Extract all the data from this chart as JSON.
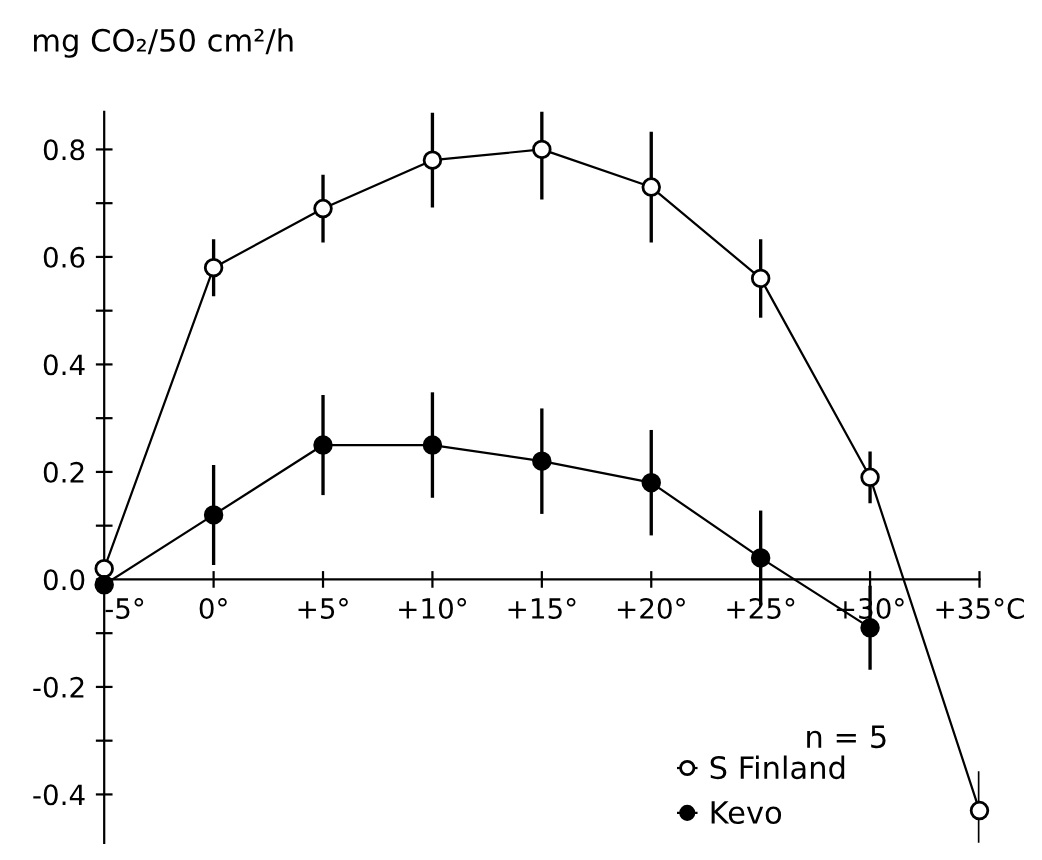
{
  "chart_data": {
    "type": "line",
    "ylabel": "mg CO₂/50 cm²/h",
    "x": [
      -5,
      0,
      5,
      10,
      15,
      20,
      25,
      30,
      35
    ],
    "series": [
      {
        "name": "S Finland",
        "color": "#000000",
        "values": [
          0.02,
          0.58,
          0.69,
          0.78,
          0.8,
          0.73,
          0.56,
          0.19,
          -0.43
        ],
        "errors": [
          null,
          0.05,
          0.06,
          0.085,
          0.09,
          0.1,
          0.07,
          0.045,
          0.07
        ]
      },
      {
        "name": "Kevo",
        "color": "#000000",
        "values": [
          -0.01,
          0.12,
          0.25,
          0.25,
          0.22,
          0.18,
          0.04,
          -0.09,
          null
        ],
        "errors": [
          null,
          0.09,
          0.09,
          0.095,
          0.095,
          0.095,
          0.085,
          0.075,
          null
        ]
      }
    ],
    "xlim": [
      -5,
      35
    ],
    "ylim": [
      -0.49,
      0.87
    ],
    "xticks": [
      {
        "value": -5,
        "label": "-5°"
      },
      {
        "value": 0,
        "label": "0°"
      },
      {
        "value": 5,
        "label": "+5°"
      },
      {
        "value": 10,
        "label": "+10°"
      },
      {
        "value": 15,
        "label": "+15°"
      },
      {
        "value": 20,
        "label": "+20°"
      },
      {
        "value": 25,
        "label": "+25°"
      },
      {
        "value": 30,
        "label": "+30°"
      },
      {
        "value": 35,
        "label": "+35°C"
      }
    ],
    "yticks": [
      {
        "value": -0.4,
        "label": "-0.4"
      },
      {
        "value": -0.3,
        "label": null
      },
      {
        "value": -0.2,
        "label": "-0.2"
      },
      {
        "value": -0.1,
        "label": null
      },
      {
        "value": 0,
        "label": "0.0"
      },
      {
        "value": 0.1,
        "label": null
      },
      {
        "value": 0.2,
        "label": "0.2"
      },
      {
        "value": 0.3,
        "label": null
      },
      {
        "value": 0.4,
        "label": "0.4"
      },
      {
        "value": 0.5,
        "label": null
      },
      {
        "value": 0.6,
        "label": "0.6"
      },
      {
        "value": 0.7,
        "label": null
      },
      {
        "value": 0.8,
        "label": "0.8"
      }
    ],
    "annotations": [
      "n = 5"
    ],
    "marker": "circle",
    "line_style": "solid",
    "grid": false,
    "legend": "bottom right"
  }
}
